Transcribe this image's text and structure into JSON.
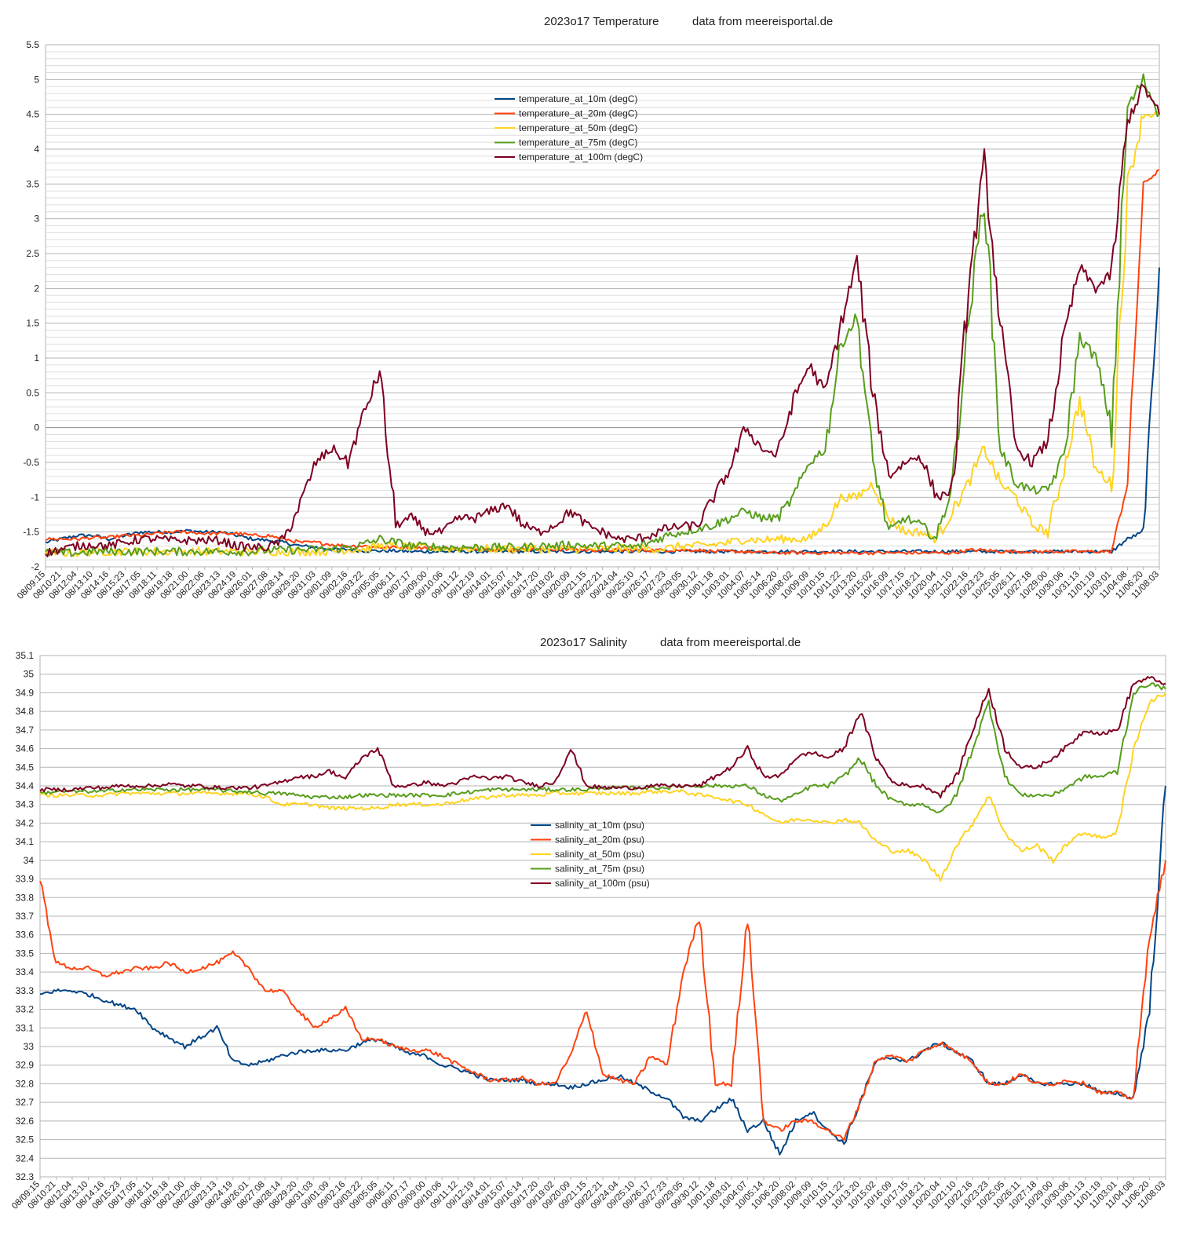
{
  "chart_data": [
    {
      "type": "line",
      "title": "2023o17 Temperature",
      "source_note": "data from meereisportal.de",
      "ylim": [
        -2,
        5.5
      ],
      "y_ticks": [
        "5.5",
        "5",
        "4.5",
        "4",
        "3.5",
        "3",
        "2.5",
        "2",
        "1.5",
        "1",
        "0.5",
        "0",
        "-0.5",
        "-1",
        "-1.5",
        "-2"
      ],
      "grid": true,
      "legend_position": "upper-center",
      "x_labels": [
        "08/09:15",
        "08/10:21",
        "08/12:04",
        "08/13:10",
        "08/14:16",
        "08/15:23",
        "08/17:05",
        "08/18:11",
        "08/19:18",
        "08/21:00",
        "08/22:06",
        "08/23:13",
        "08/24:19",
        "08/26:01",
        "08/27:08",
        "08/28:14",
        "08/29:20",
        "08/31:03",
        "09/01:09",
        "09/02:16",
        "09/03:22",
        "09/05:05",
        "09/06:11",
        "09/07:17",
        "09/09:00",
        "09/10:06",
        "09/11:12",
        "09/12:19",
        "09/14:01",
        "09/15:07",
        "09/16:14",
        "09/17:20",
        "09/19:02",
        "09/20:09",
        "09/21:15",
        "09/22:21",
        "09/24:04",
        "09/25:10",
        "09/26:17",
        "09/27:23",
        "09/29:05",
        "09/30:12",
        "10/01:18",
        "10/03:01",
        "10/04:07",
        "10/05:14",
        "10/06:20",
        "10/08:02",
        "10/09:09",
        "10/10:15",
        "10/11:22",
        "10/13:20",
        "10/15:02",
        "10/16:09",
        "10/17:15",
        "10/18:21",
        "10/20:04",
        "10/21:10",
        "10/22:16",
        "10/23:23",
        "10/25:05",
        "10/26:11",
        "10/27:18",
        "10/29:00",
        "10/30:06",
        "10/31:13",
        "11/01:19",
        "11/03:01",
        "11/04:08",
        "11/06:20",
        "11/08:03"
      ],
      "series": [
        {
          "name": "temperature_at_10m (degC)",
          "color": "#004586",
          "values": [
            -1.65,
            -1.6,
            -1.55,
            -1.55,
            -1.6,
            -1.55,
            -1.5,
            -1.5,
            -1.5,
            -1.48,
            -1.5,
            -1.5,
            -1.55,
            -1.6,
            -1.62,
            -1.65,
            -1.7,
            -1.72,
            -1.75,
            -1.75,
            -1.77,
            -1.77,
            -1.77,
            -1.78,
            -1.78,
            -1.78,
            -1.78,
            -1.78,
            -1.78,
            -1.78,
            -1.78,
            -1.78,
            -1.78,
            -1.78,
            -1.78,
            -1.78,
            -1.78,
            -1.78,
            -1.78,
            -1.78,
            -1.78,
            -1.78,
            -1.78,
            -1.78,
            -1.78,
            -1.78,
            -1.78,
            -1.78,
            -1.78,
            -1.78,
            -1.78,
            -1.78,
            -1.78,
            -1.78,
            -1.78,
            -1.78,
            -1.78,
            -1.78,
            -1.78,
            -1.78,
            -1.78,
            -1.78,
            -1.78,
            -1.78,
            -1.78,
            -1.78,
            -1.78,
            -1.78,
            -1.6,
            -1.5,
            2.3
          ]
        },
        {
          "name": "temperature_at_20m (degC)",
          "color": "#ff420e",
          "values": [
            -1.6,
            -1.6,
            -1.6,
            -1.58,
            -1.58,
            -1.55,
            -1.55,
            -1.52,
            -1.5,
            -1.5,
            -1.52,
            -1.52,
            -1.52,
            -1.55,
            -1.55,
            -1.6,
            -1.65,
            -1.65,
            -1.68,
            -1.7,
            -1.7,
            -1.72,
            -1.72,
            -1.72,
            -1.73,
            -1.73,
            -1.74,
            -1.74,
            -1.75,
            -1.75,
            -1.75,
            -1.75,
            -1.75,
            -1.75,
            -1.76,
            -1.76,
            -1.76,
            -1.76,
            -1.76,
            -1.76,
            -1.76,
            -1.76,
            -1.78,
            -1.78,
            -1.78,
            -1.8,
            -1.8,
            -1.8,
            -1.8,
            -1.8,
            -1.8,
            -1.8,
            -1.8,
            -1.8,
            -1.8,
            -1.8,
            -1.8,
            -1.8,
            -1.76,
            -1.76,
            -1.78,
            -1.78,
            -1.78,
            -1.78,
            -1.78,
            -1.78,
            -1.78,
            -1.78,
            -0.8,
            3.5,
            3.7
          ]
        },
        {
          "name": "temperature_at_50m (degC)",
          "color": "#ffd320",
          "values": [
            -1.8,
            -1.8,
            -1.8,
            -1.78,
            -1.78,
            -1.78,
            -1.78,
            -1.78,
            -1.78,
            -1.78,
            -1.78,
            -1.78,
            -1.78,
            -1.78,
            -1.78,
            -1.78,
            -1.78,
            -1.78,
            -1.78,
            -1.75,
            -1.75,
            -1.7,
            -1.7,
            -1.72,
            -1.72,
            -1.74,
            -1.74,
            -1.74,
            -1.74,
            -1.74,
            -1.74,
            -1.74,
            -1.74,
            -1.74,
            -1.74,
            -1.74,
            -1.74,
            -1.74,
            -1.74,
            -1.74,
            -1.7,
            -1.7,
            -1.68,
            -1.65,
            -1.6,
            -1.62,
            -1.6,
            -1.6,
            -1.6,
            -1.4,
            -1.0,
            -1.0,
            -0.8,
            -1.3,
            -1.5,
            -1.5,
            -1.6,
            -1.2,
            -0.8,
            -0.3,
            -0.8,
            -1.0,
            -1.4,
            -1.5,
            -0.6,
            0.4,
            -0.6,
            -0.8,
            3.5,
            4.5,
            4.5
          ]
        },
        {
          "name": "temperature_at_75m (degC)",
          "color": "#579d1c",
          "values": [
            -1.8,
            -1.8,
            -1.8,
            -1.78,
            -1.78,
            -1.78,
            -1.78,
            -1.78,
            -1.78,
            -1.78,
            -1.78,
            -1.78,
            -1.78,
            -1.78,
            -1.76,
            -1.76,
            -1.76,
            -1.75,
            -1.75,
            -1.72,
            -1.68,
            -1.6,
            -1.65,
            -1.7,
            -1.7,
            -1.72,
            -1.72,
            -1.72,
            -1.72,
            -1.72,
            -1.72,
            -1.7,
            -1.7,
            -1.68,
            -1.7,
            -1.7,
            -1.7,
            -1.72,
            -1.65,
            -1.55,
            -1.5,
            -1.45,
            -1.4,
            -1.3,
            -1.2,
            -1.3,
            -1.3,
            -1.0,
            -0.5,
            -0.3,
            1.2,
            1.6,
            -0.5,
            -1.5,
            -1.3,
            -1.4,
            -1.6,
            -0.8,
            1.5,
            3.4,
            -0.3,
            -0.8,
            -0.9,
            -0.9,
            -0.4,
            1.3,
            1.0,
            0.0,
            4.6,
            5.0,
            4.5
          ]
        },
        {
          "name": "temperature_at_100m (degC)",
          "color": "#7e0021",
          "values": [
            -1.8,
            -1.75,
            -1.7,
            -1.68,
            -1.7,
            -1.65,
            -1.6,
            -1.6,
            -1.62,
            -1.62,
            -1.62,
            -1.62,
            -1.7,
            -1.72,
            -1.72,
            -1.6,
            -1.1,
            -0.5,
            -0.3,
            -0.5,
            0.2,
            0.8,
            -1.4,
            -1.3,
            -1.5,
            -1.5,
            -1.3,
            -1.3,
            -1.2,
            -1.1,
            -1.4,
            -1.5,
            -1.4,
            -1.2,
            -1.4,
            -1.5,
            -1.6,
            -1.6,
            -1.55,
            -1.45,
            -1.42,
            -1.4,
            -1.0,
            -0.6,
            0.0,
            -0.3,
            -0.4,
            0.4,
            0.9,
            0.5,
            1.5,
            2.4,
            0.5,
            -0.7,
            -0.5,
            -0.4,
            -1.0,
            -0.9,
            2.0,
            3.8,
            1.5,
            -0.3,
            -0.5,
            -0.2,
            1.3,
            2.3,
            2.0,
            2.2,
            4.4,
            4.9,
            4.5
          ]
        }
      ]
    },
    {
      "type": "line",
      "title": "2023o17 Salinity",
      "source_note": "data from meereisportal.de",
      "ylim": [
        32.3,
        35.1
      ],
      "y_ticks": [
        "35.1",
        "35",
        "34.9",
        "34.8",
        "34.7",
        "34.6",
        "34.5",
        "34.4",
        "34.3",
        "34.2",
        "34.1",
        "34",
        "33.9",
        "33.8",
        "33.7",
        "33.6",
        "33.5",
        "33.4",
        "33.3",
        "33.2",
        "33.1",
        "33",
        "32.9",
        "32.8",
        "32.7",
        "32.6",
        "32.5",
        "32.4",
        "32.3"
      ],
      "grid": true,
      "legend_position": "center",
      "x_labels": [
        "08/09:15",
        "08/10:21",
        "08/12:04",
        "08/13:10",
        "08/14:16",
        "08/15:23",
        "08/17:05",
        "08/18:11",
        "08/19:18",
        "08/21:00",
        "08/22:06",
        "08/23:13",
        "08/24:19",
        "08/26:01",
        "08/27:08",
        "08/28:14",
        "08/29:20",
        "08/31:03",
        "09/01:09",
        "09/02:16",
        "09/03:22",
        "09/05:05",
        "09/06:11",
        "09/07:17",
        "09/09:00",
        "09/10:06",
        "09/11:12",
        "09/12:19",
        "09/14:01",
        "09/15:07",
        "09/16:14",
        "09/17:20",
        "09/19:02",
        "09/20:09",
        "09/21:15",
        "09/22:21",
        "09/24:04",
        "09/25:10",
        "09/26:17",
        "09/27:23",
        "09/29:05",
        "09/30:12",
        "10/01:18",
        "10/03:01",
        "10/04:07",
        "10/05:14",
        "10/06:20",
        "10/08:02",
        "10/09:09",
        "10/10:15",
        "10/11:22",
        "10/13:20",
        "10/15:02",
        "10/16:09",
        "10/17:15",
        "10/18:21",
        "10/20:04",
        "10/21:10",
        "10/22:16",
        "10/23:23",
        "10/25:05",
        "10/26:11",
        "10/27:18",
        "10/29:00",
        "10/30:06",
        "10/31:13",
        "11/01:19",
        "11/03:01",
        "11/04:08",
        "11/06:20",
        "11/08:03"
      ],
      "series": [
        {
          "name": "salinity_at_10m (psu)",
          "color": "#004586",
          "values": [
            33.28,
            33.3,
            33.3,
            33.28,
            33.25,
            33.22,
            33.2,
            33.1,
            33.05,
            33.0,
            33.05,
            33.1,
            32.92,
            32.9,
            32.92,
            32.95,
            32.97,
            32.98,
            32.98,
            32.98,
            33.02,
            33.04,
            33.0,
            32.96,
            32.95,
            32.9,
            32.88,
            32.85,
            32.82,
            32.82,
            32.82,
            32.8,
            32.8,
            32.78,
            32.8,
            32.82,
            32.84,
            32.8,
            32.76,
            32.72,
            32.62,
            32.6,
            32.66,
            32.72,
            32.55,
            32.6,
            32.42,
            32.6,
            32.65,
            32.55,
            32.48,
            32.7,
            32.92,
            32.94,
            32.92,
            32.98,
            33.02,
            32.97,
            32.92,
            32.8,
            32.8,
            32.85,
            32.8,
            32.8,
            32.8,
            32.8,
            32.75,
            32.75,
            32.72,
            33.2,
            34.4
          ]
        },
        {
          "name": "salinity_at_20m (psu)",
          "color": "#ff420e",
          "values": [
            33.9,
            33.45,
            33.42,
            33.42,
            33.38,
            33.4,
            33.42,
            33.42,
            33.45,
            33.4,
            33.42,
            33.45,
            33.5,
            33.42,
            33.3,
            33.3,
            33.2,
            33.1,
            33.15,
            33.2,
            33.04,
            33.04,
            33.0,
            32.98,
            32.98,
            32.95,
            32.9,
            32.86,
            32.82,
            32.82,
            32.83,
            32.8,
            32.8,
            32.95,
            33.2,
            32.85,
            32.82,
            32.8,
            32.95,
            32.9,
            33.4,
            33.7,
            32.8,
            32.8,
            33.7,
            32.6,
            32.55,
            32.6,
            32.6,
            32.55,
            32.5,
            32.7,
            32.93,
            32.95,
            32.92,
            32.98,
            33.02,
            32.97,
            32.92,
            32.8,
            32.8,
            32.85,
            32.8,
            32.8,
            32.82,
            32.8,
            32.75,
            32.75,
            32.72,
            33.6,
            34.0
          ]
        },
        {
          "name": "salinity_at_50m (psu)",
          "color": "#ffd320",
          "values": [
            34.35,
            34.35,
            34.35,
            34.35,
            34.35,
            34.36,
            34.36,
            34.36,
            34.36,
            34.36,
            34.36,
            34.36,
            34.36,
            34.36,
            34.34,
            34.3,
            34.3,
            34.3,
            34.28,
            34.28,
            34.28,
            34.28,
            34.3,
            34.3,
            34.3,
            34.3,
            34.32,
            34.33,
            34.34,
            34.35,
            34.35,
            34.35,
            34.36,
            34.36,
            34.36,
            34.36,
            34.36,
            34.36,
            34.37,
            34.37,
            34.37,
            34.35,
            34.34,
            34.32,
            34.3,
            34.25,
            34.2,
            34.22,
            34.22,
            34.2,
            34.22,
            34.2,
            34.1,
            34.05,
            34.05,
            34.0,
            33.9,
            34.08,
            34.2,
            34.35,
            34.15,
            34.05,
            34.08,
            34.0,
            34.1,
            34.15,
            34.12,
            34.15,
            34.6,
            34.85,
            34.9
          ]
        },
        {
          "name": "salinity_at_75m (psu)",
          "color": "#579d1c",
          "values": [
            34.36,
            34.37,
            34.37,
            34.37,
            34.37,
            34.38,
            34.38,
            34.38,
            34.38,
            34.38,
            34.38,
            34.38,
            34.37,
            34.37,
            34.36,
            34.36,
            34.35,
            34.34,
            34.34,
            34.34,
            34.35,
            34.35,
            34.35,
            34.35,
            34.35,
            34.35,
            34.36,
            34.37,
            34.38,
            34.38,
            34.38,
            34.38,
            34.38,
            34.38,
            34.38,
            34.39,
            34.39,
            34.39,
            34.39,
            34.39,
            34.4,
            34.4,
            34.4,
            34.4,
            34.4,
            34.35,
            34.32,
            34.35,
            34.4,
            34.4,
            34.45,
            34.55,
            34.4,
            34.32,
            34.3,
            34.3,
            34.25,
            34.35,
            34.6,
            34.85,
            34.45,
            34.35,
            34.35,
            34.35,
            34.4,
            34.45,
            34.45,
            34.48,
            34.9,
            34.95,
            34.92
          ]
        },
        {
          "name": "salinity_at_100m (psu)",
          "color": "#7e0021",
          "values": [
            34.38,
            34.38,
            34.38,
            34.39,
            34.39,
            34.4,
            34.4,
            34.4,
            34.41,
            34.4,
            34.4,
            34.39,
            34.39,
            34.39,
            34.4,
            34.42,
            34.45,
            34.45,
            34.48,
            34.44,
            34.55,
            34.6,
            34.4,
            34.4,
            34.42,
            34.4,
            34.42,
            34.45,
            34.44,
            34.45,
            34.42,
            34.4,
            34.42,
            34.6,
            34.4,
            34.39,
            34.39,
            34.39,
            34.4,
            34.4,
            34.4,
            34.4,
            34.45,
            34.5,
            34.6,
            34.45,
            34.45,
            34.55,
            34.58,
            34.55,
            34.6,
            34.8,
            34.55,
            34.42,
            34.4,
            34.4,
            34.35,
            34.45,
            34.7,
            34.92,
            34.6,
            34.5,
            34.5,
            34.55,
            34.62,
            34.7,
            34.68,
            34.7,
            34.95,
            34.98,
            34.95
          ]
        }
      ]
    }
  ]
}
